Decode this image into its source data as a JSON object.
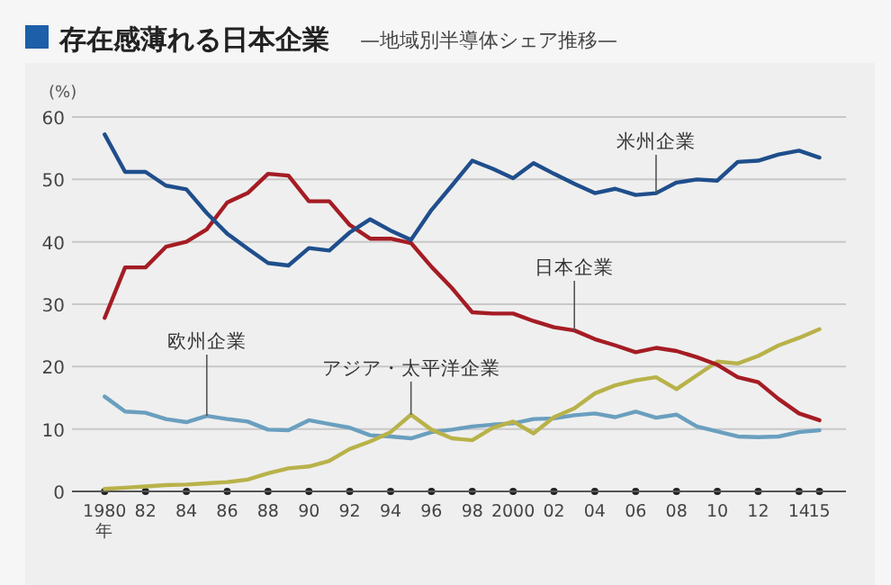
{
  "chart_data": {
    "type": "line",
    "title": "存在感薄れる日本企業",
    "subtitle": "—地域別半導体シェア推移—",
    "ylabel": "(%)",
    "xlabel": "年",
    "x": [
      1980,
      1981,
      1982,
      1983,
      1984,
      1985,
      1986,
      1987,
      1988,
      1989,
      1990,
      1991,
      1992,
      1993,
      1994,
      1995,
      1996,
      1997,
      1998,
      1999,
      2000,
      2001,
      2002,
      2003,
      2004,
      2005,
      2006,
      2007,
      2008,
      2009,
      2010,
      2011,
      2012,
      2013,
      2014,
      2015
    ],
    "series": [
      {
        "name": "米州企業",
        "color": "#1f4e8c",
        "values": [
          57.2,
          51.2,
          51.2,
          49,
          48.4,
          44.6,
          41.3,
          38.9,
          36.6,
          36.2,
          39,
          38.6,
          41.5,
          43.6,
          41.8,
          40.3,
          45.1,
          49,
          53,
          51.7,
          50.2,
          52.6,
          50.9,
          49.3,
          47.8,
          48.5,
          47.5,
          47.8,
          49.5,
          50,
          49.8,
          52.8,
          53,
          54,
          54.6,
          53.5
        ]
      },
      {
        "name": "日本企業",
        "color": "#a51c24",
        "values": [
          27.8,
          35.9,
          35.9,
          39.2,
          40,
          42,
          46.3,
          47.8,
          50.9,
          50.6,
          46.5,
          46.5,
          42.7,
          40.5,
          40.5,
          39.8,
          36,
          32.6,
          28.7,
          28.5,
          28.5,
          27.3,
          26.3,
          25.8,
          24.4,
          23.4,
          22.3,
          23,
          22.5,
          21.5,
          20.3,
          18.3,
          17.5,
          14.8,
          12.5,
          11.4
        ]
      },
      {
        "name": "欧州企業",
        "color": "#6a9fbf",
        "values": [
          15.2,
          12.8,
          12.6,
          11.6,
          11.1,
          12.1,
          11.6,
          11.2,
          9.9,
          9.8,
          11.4,
          10.8,
          10.2,
          9,
          8.8,
          8.5,
          9.5,
          9.9,
          10.4,
          10.7,
          10.9,
          11.6,
          11.7,
          12.2,
          12.5,
          11.9,
          12.8,
          11.8,
          12.3,
          10.4,
          9.6,
          8.8,
          8.7,
          8.8,
          9.5,
          9.8
        ]
      },
      {
        "name": "アジア・太平洋企業",
        "color": "#b8b24a",
        "values": [
          0.4,
          0.6,
          0.8,
          1,
          1.1,
          1.3,
          1.5,
          1.9,
          2.9,
          3.7,
          4,
          4.9,
          6.8,
          8,
          9.5,
          12.3,
          9.9,
          8.5,
          8.2,
          10.2,
          11.2,
          9.3,
          11.9,
          13.3,
          15.7,
          17,
          17.8,
          18.3,
          16.4,
          18.6,
          20.8,
          20.5,
          21.7,
          23.4,
          24.6,
          26
        ]
      }
    ],
    "xlim": [
      1978.4,
      2016.3
    ],
    "xticks": [
      {
        "value": 1980,
        "label": "1980"
      },
      {
        "value": 1982,
        "label": "82"
      },
      {
        "value": 1984,
        "label": "84"
      },
      {
        "value": 1986,
        "label": "86"
      },
      {
        "value": 1988,
        "label": "88"
      },
      {
        "value": 1990,
        "label": "90"
      },
      {
        "value": 1992,
        "label": "92"
      },
      {
        "value": 1994,
        "label": "94"
      },
      {
        "value": 1996,
        "label": "96"
      },
      {
        "value": 1998,
        "label": "98"
      },
      {
        "value": 2000,
        "label": "2000"
      },
      {
        "value": 2002,
        "label": "02"
      },
      {
        "value": 2004,
        "label": "04"
      },
      {
        "value": 2006,
        "label": "06"
      },
      {
        "value": 2008,
        "label": "08"
      },
      {
        "value": 2010,
        "label": "10"
      },
      {
        "value": 2012,
        "label": "12"
      },
      {
        "value": 2014,
        "label": "14"
      },
      {
        "value": 2015,
        "label": "15"
      }
    ],
    "ylim": [
      0,
      60
    ],
    "yticks": [
      0,
      10,
      20,
      30,
      40,
      50,
      60
    ],
    "grid": "y",
    "legend": false,
    "marker": "none",
    "line_style": "solid"
  }
}
